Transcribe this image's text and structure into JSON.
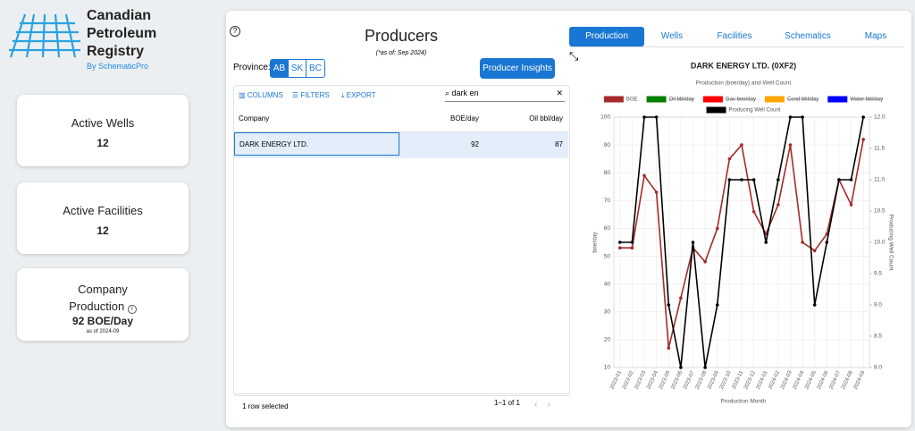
{
  "sidebar": {
    "logo": {
      "title_lines": [
        "Canadian",
        "Petroleum",
        "Registry"
      ],
      "byline": "By SchematicPro"
    },
    "cards": [
      {
        "title": "Active Wells",
        "value": 12
      },
      {
        "title": "Active Facilities",
        "value": 12
      },
      {
        "title": "Company Production",
        "value": "92 BOE/Day",
        "note": "as of 2024-09"
      }
    ]
  },
  "producers": {
    "title": "Producers",
    "as_of": "(*as of: Sep 2024)",
    "province_label": "Province:",
    "provinces": [
      "AB",
      "SK",
      "BC"
    ],
    "insights_button": "Producer Insights",
    "toolbar": [
      "COLUMNS",
      "FILTERS",
      "EXPORT"
    ],
    "search": "dark en",
    "table": {
      "columns": [
        "Company",
        "BOE/day",
        "Oil bbl/day"
      ],
      "rows": [
        [
          "DARK ENERGY LTD.",
          92,
          87
        ]
      ]
    },
    "footer": "1 row selected",
    "pagination": "1–1 of 1"
  },
  "tabs": [
    "Production",
    "Wells",
    "Facilities",
    "Schematics",
    "Maps"
  ],
  "chart_data": {
    "type": "line",
    "title": "DARK ENERGY LTD. (0XF2)",
    "subtitle": "Production (boe/day) and Well Count",
    "x_label": "Production Month",
    "y_label": "boe/day",
    "y2_label": "Producing Well Count",
    "categories": [
      "2023-01",
      "2023-02",
      "2023-03",
      "2023-04",
      "2023-05",
      "2023-06",
      "2023-07",
      "2023-08",
      "2023-09",
      "2023-10",
      "2023-11",
      "2023-12",
      "2024-01",
      "2024-02",
      "2024-03",
      "2024-04",
      "2024-05",
      "2024-06",
      "2024-07",
      "2024-08",
      "2024-09"
    ],
    "ylim": [
      10,
      100
    ],
    "yticks": [
      10,
      20,
      30,
      40,
      50,
      60,
      70,
      80,
      90,
      100
    ],
    "y2lim": [
      8,
      12
    ],
    "y2ticks": [
      {
        "value": 8,
        "label": "8.0"
      },
      8.5,
      {
        "value": 9,
        "label": "9.0"
      },
      9.5,
      {
        "value": 10,
        "label": "10.0"
      },
      10.5,
      {
        "value": 11,
        "label": "11.0"
      },
      11.5,
      {
        "value": 12,
        "label": "12.0"
      }
    ],
    "grid": true,
    "series": [
      {
        "name": "BOE",
        "color": "#a52a2a",
        "values": [
          53,
          53,
          79,
          73,
          17,
          35,
          53,
          48,
          60,
          85,
          90,
          66,
          58,
          68.5,
          90,
          55,
          52,
          58,
          77.5,
          68.5,
          92
        ]
      },
      {
        "name": "Oil bbl/day",
        "color": "#008000",
        "hidden": true,
        "values": [
          null,
          null,
          null,
          null,
          null,
          null,
          null,
          null,
          null,
          null,
          null,
          null,
          null,
          null,
          null,
          null,
          null,
          null,
          null,
          null,
          null
        ]
      },
      {
        "name": "Gas boe/day",
        "color": "#ff0000",
        "hidden": true,
        "values": [
          null,
          null,
          null,
          null,
          null,
          null,
          null,
          null,
          null,
          null,
          null,
          null,
          null,
          null,
          null,
          null,
          null,
          null,
          null,
          null,
          null
        ]
      },
      {
        "name": "Cond bbl/day",
        "color": "#ffa500",
        "hidden": true,
        "values": [
          null,
          null,
          null,
          null,
          null,
          null,
          null,
          null,
          null,
          null,
          null,
          null,
          null,
          null,
          null,
          null,
          null,
          null,
          null,
          null,
          null
        ]
      },
      {
        "name": "Water bbl/day",
        "color": "#0000ff",
        "hidden": true,
        "values": [
          null,
          null,
          null,
          null,
          null,
          null,
          null,
          null,
          null,
          null,
          null,
          null,
          null,
          null,
          null,
          null,
          null,
          null,
          null,
          null,
          null
        ]
      },
      {
        "name": "Producing Well Count",
        "color": "#000000",
        "axis": "y2",
        "values": [
          10,
          10,
          12,
          12,
          9,
          8,
          10,
          8,
          9,
          11,
          11,
          11,
          10,
          11,
          12,
          12,
          9,
          10,
          11,
          11,
          12
        ]
      }
    ]
  }
}
